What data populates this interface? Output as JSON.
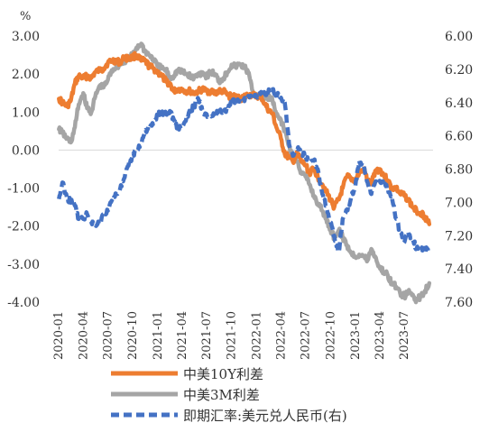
{
  "chart_data": {
    "type": "line",
    "y_unit_label": "%",
    "left_axis": {
      "ticks": [
        "3.00",
        "2.00",
        "1.00",
        "0.00",
        "-1.00",
        "-2.00",
        "-3.00",
        "-4.00"
      ],
      "ylim": [
        -4,
        3
      ]
    },
    "right_axis": {
      "ticks": [
        "6.00",
        "6.20",
        "6.40",
        "6.60",
        "6.80",
        "7.00",
        "7.20",
        "7.40",
        "7.60"
      ],
      "ylim": [
        6.0,
        7.6
      ],
      "reversed": true
    },
    "x_labels": [
      "2020-01",
      "2020-04",
      "2020-07",
      "2020-10",
      "2021-01",
      "2021-04",
      "2021-07",
      "2021-10",
      "2022-01",
      "2022-04",
      "2022-07",
      "2022-10",
      "2023-01",
      "2023-04",
      "2023-07"
    ],
    "legend_position": "bottom-left",
    "series": [
      {
        "name": "中美10Y利差",
        "axis": "left",
        "color": "#ED7D31",
        "style": "solid",
        "points": [
          [
            "2020-01-02",
            1.35
          ],
          [
            "2020-01-15",
            1.25
          ],
          [
            "2020-02-01",
            1.15
          ],
          [
            "2020-02-15",
            1.3
          ],
          [
            "2020-03-01",
            1.75
          ],
          [
            "2020-03-15",
            1.95
          ],
          [
            "2020-04-01",
            1.9
          ],
          [
            "2020-04-15",
            1.95
          ],
          [
            "2020-05-01",
            1.9
          ],
          [
            "2020-05-15",
            2.05
          ],
          [
            "2020-06-01",
            2.1
          ],
          [
            "2020-06-15",
            2.15
          ],
          [
            "2020-07-01",
            2.3
          ],
          [
            "2020-07-15",
            2.35
          ],
          [
            "2020-08-01",
            2.35
          ],
          [
            "2020-08-15",
            2.3
          ],
          [
            "2020-09-01",
            2.45
          ],
          [
            "2020-09-15",
            2.4
          ],
          [
            "2020-10-01",
            2.45
          ],
          [
            "2020-10-15",
            2.5
          ],
          [
            "2020-11-01",
            2.35
          ],
          [
            "2020-11-15",
            2.35
          ],
          [
            "2020-12-01",
            2.2
          ],
          [
            "2020-12-15",
            2.15
          ],
          [
            "2021-01-01",
            2.05
          ],
          [
            "2021-01-15",
            1.95
          ],
          [
            "2021-02-01",
            1.8
          ],
          [
            "2021-02-15",
            1.75
          ],
          [
            "2021-03-01",
            1.55
          ],
          [
            "2021-03-15",
            1.6
          ],
          [
            "2021-04-01",
            1.6
          ],
          [
            "2021-04-15",
            1.55
          ],
          [
            "2021-05-01",
            1.55
          ],
          [
            "2021-05-15",
            1.5
          ],
          [
            "2021-06-01",
            1.55
          ],
          [
            "2021-06-15",
            1.6
          ],
          [
            "2021-07-01",
            1.55
          ],
          [
            "2021-07-15",
            1.55
          ],
          [
            "2021-08-01",
            1.5
          ],
          [
            "2021-08-15",
            1.55
          ],
          [
            "2021-09-01",
            1.55
          ],
          [
            "2021-09-15",
            1.45
          ],
          [
            "2021-10-01",
            1.4
          ],
          [
            "2021-10-15",
            1.4
          ],
          [
            "2021-11-01",
            1.35
          ],
          [
            "2021-11-15",
            1.4
          ],
          [
            "2021-12-01",
            1.45
          ],
          [
            "2021-12-15",
            1.45
          ],
          [
            "2022-01-01",
            1.4
          ],
          [
            "2022-01-15",
            1.45
          ],
          [
            "2022-02-01",
            1.2
          ],
          [
            "2022-02-15",
            1.05
          ],
          [
            "2022-03-01",
            0.95
          ],
          [
            "2022-03-15",
            0.6
          ],
          [
            "2022-04-01",
            0.3
          ],
          [
            "2022-04-15",
            -0.1
          ],
          [
            "2022-05-01",
            -0.2
          ],
          [
            "2022-05-15",
            -0.3
          ],
          [
            "2022-06-01",
            -0.1
          ],
          [
            "2022-06-15",
            -0.3
          ],
          [
            "2022-07-01",
            -0.4
          ],
          [
            "2022-07-15",
            -0.6
          ],
          [
            "2022-08-01",
            -0.5
          ],
          [
            "2022-08-15",
            -0.7
          ],
          [
            "2022-09-01",
            -0.9
          ],
          [
            "2022-09-15",
            -1.1
          ],
          [
            "2022-10-01",
            -1.3
          ],
          [
            "2022-10-15",
            -1.5
          ],
          [
            "2022-11-01",
            -1.3
          ],
          [
            "2022-11-15",
            -1.0
          ],
          [
            "2022-12-01",
            -0.7
          ],
          [
            "2022-12-15",
            -0.75
          ],
          [
            "2023-01-01",
            -0.8
          ],
          [
            "2023-01-15",
            -0.6
          ],
          [
            "2023-02-01",
            -0.5
          ],
          [
            "2023-02-15",
            -0.8
          ],
          [
            "2023-03-01",
            -0.9
          ],
          [
            "2023-03-15",
            -0.55
          ],
          [
            "2023-04-01",
            -0.5
          ],
          [
            "2023-04-15",
            -0.65
          ],
          [
            "2023-05-01",
            -0.8
          ],
          [
            "2023-05-15",
            -1.0
          ],
          [
            "2023-06-01",
            -1.0
          ],
          [
            "2023-06-15",
            -1.15
          ],
          [
            "2023-07-01",
            -1.2
          ],
          [
            "2023-07-15",
            -1.3
          ],
          [
            "2023-08-01",
            -1.5
          ],
          [
            "2023-08-15",
            -1.6
          ],
          [
            "2023-09-01",
            -1.65
          ],
          [
            "2023-09-15",
            -1.75
          ],
          [
            "2023-10-01",
            -1.95
          ]
        ]
      },
      {
        "name": "中美3M利差",
        "axis": "left",
        "color": "#A5A5A5",
        "style": "solid",
        "points": [
          [
            "2020-01-02",
            0.55
          ],
          [
            "2020-01-15",
            0.45
          ],
          [
            "2020-02-01",
            0.3
          ],
          [
            "2020-02-15",
            0.2
          ],
          [
            "2020-03-01",
            0.6
          ],
          [
            "2020-03-15",
            1.2
          ],
          [
            "2020-04-01",
            1.5
          ],
          [
            "2020-04-15",
            1.1
          ],
          [
            "2020-05-01",
            1.0
          ],
          [
            "2020-05-15",
            1.4
          ],
          [
            "2020-06-01",
            1.7
          ],
          [
            "2020-06-15",
            1.65
          ],
          [
            "2020-07-01",
            1.85
          ],
          [
            "2020-07-15",
            2.1
          ],
          [
            "2020-08-01",
            2.2
          ],
          [
            "2020-08-15",
            2.25
          ],
          [
            "2020-09-01",
            2.35
          ],
          [
            "2020-09-15",
            2.4
          ],
          [
            "2020-10-01",
            2.5
          ],
          [
            "2020-10-15",
            2.7
          ],
          [
            "2020-11-01",
            2.8
          ],
          [
            "2020-11-15",
            2.6
          ],
          [
            "2020-12-01",
            2.5
          ],
          [
            "2020-12-15",
            2.4
          ],
          [
            "2021-01-01",
            2.2
          ],
          [
            "2021-01-15",
            2.15
          ],
          [
            "2021-02-01",
            2.1
          ],
          [
            "2021-02-15",
            1.9
          ],
          [
            "2021-03-01",
            1.95
          ],
          [
            "2021-03-15",
            2.1
          ],
          [
            "2021-04-01",
            2.05
          ],
          [
            "2021-04-15",
            2.0
          ],
          [
            "2021-05-01",
            1.95
          ],
          [
            "2021-05-15",
            1.9
          ],
          [
            "2021-06-01",
            2.0
          ],
          [
            "2021-06-15",
            2.05
          ],
          [
            "2021-07-01",
            1.95
          ],
          [
            "2021-07-15",
            2.05
          ],
          [
            "2021-08-01",
            2.0
          ],
          [
            "2021-08-15",
            1.8
          ],
          [
            "2021-09-01",
            1.9
          ],
          [
            "2021-09-15",
            2.05
          ],
          [
            "2021-10-01",
            2.25
          ],
          [
            "2021-10-15",
            2.2
          ],
          [
            "2021-11-01",
            2.25
          ],
          [
            "2021-11-15",
            2.2
          ],
          [
            "2021-12-01",
            2.05
          ],
          [
            "2021-12-15",
            1.6
          ],
          [
            "2022-01-01",
            1.45
          ],
          [
            "2022-01-15",
            1.4
          ],
          [
            "2022-02-01",
            1.35
          ],
          [
            "2022-02-15",
            1.4
          ],
          [
            "2022-03-01",
            1.3
          ],
          [
            "2022-03-15",
            0.9
          ],
          [
            "2022-04-01",
            0.8
          ],
          [
            "2022-04-15",
            0.5
          ],
          [
            "2022-05-01",
            0.1
          ],
          [
            "2022-05-15",
            -0.2
          ],
          [
            "2022-06-01",
            -0.3
          ],
          [
            "2022-06-15",
            -0.6
          ],
          [
            "2022-07-01",
            -0.7
          ],
          [
            "2022-07-15",
            -0.9
          ],
          [
            "2022-08-01",
            -1.2
          ],
          [
            "2022-08-15",
            -1.4
          ],
          [
            "2022-09-01",
            -1.6
          ],
          [
            "2022-09-15",
            -1.8
          ],
          [
            "2022-10-01",
            -2.1
          ],
          [
            "2022-10-15",
            -2.3
          ],
          [
            "2022-11-01",
            -2.1
          ],
          [
            "2022-11-15",
            -2.3
          ],
          [
            "2022-12-01",
            -2.5
          ],
          [
            "2022-12-15",
            -2.7
          ],
          [
            "2023-01-01",
            -2.8
          ],
          [
            "2023-01-15",
            -2.75
          ],
          [
            "2023-02-01",
            -2.8
          ],
          [
            "2023-02-15",
            -2.9
          ],
          [
            "2023-03-01",
            -2.6
          ],
          [
            "2023-03-15",
            -2.8
          ],
          [
            "2023-04-01",
            -3.1
          ],
          [
            "2023-04-15",
            -3.2
          ],
          [
            "2023-05-01",
            -3.3
          ],
          [
            "2023-05-15",
            -3.5
          ],
          [
            "2023-06-01",
            -3.6
          ],
          [
            "2023-06-15",
            -3.75
          ],
          [
            "2023-07-01",
            -3.85
          ],
          [
            "2023-07-15",
            -3.75
          ],
          [
            "2023-08-01",
            -3.8
          ],
          [
            "2023-08-15",
            -3.95
          ],
          [
            "2023-09-01",
            -3.85
          ],
          [
            "2023-09-15",
            -3.7
          ],
          [
            "2023-10-01",
            -3.5
          ]
        ]
      },
      {
        "name": "即期汇率:美元兑人民币(右)",
        "axis": "right",
        "color": "#4472C4",
        "style": "dashed",
        "points": [
          [
            "2020-01-02",
            6.98
          ],
          [
            "2020-01-15",
            6.88
          ],
          [
            "2020-02-01",
            6.98
          ],
          [
            "2020-02-15",
            6.99
          ],
          [
            "2020-03-01",
            7.02
          ],
          [
            "2020-03-15",
            7.1
          ],
          [
            "2020-04-01",
            7.1
          ],
          [
            "2020-04-15",
            7.07
          ],
          [
            "2020-05-01",
            7.12
          ],
          [
            "2020-05-15",
            7.13
          ],
          [
            "2020-06-01",
            7.12
          ],
          [
            "2020-06-15",
            7.07
          ],
          [
            "2020-07-01",
            7.05
          ],
          [
            "2020-07-15",
            6.99
          ],
          [
            "2020-08-01",
            6.95
          ],
          [
            "2020-08-15",
            6.92
          ],
          [
            "2020-09-01",
            6.85
          ],
          [
            "2020-09-15",
            6.78
          ],
          [
            "2020-10-01",
            6.72
          ],
          [
            "2020-10-15",
            6.68
          ],
          [
            "2020-11-01",
            6.65
          ],
          [
            "2020-11-15",
            6.57
          ],
          [
            "2020-12-01",
            6.55
          ],
          [
            "2020-12-15",
            6.53
          ],
          [
            "2021-01-01",
            6.47
          ],
          [
            "2021-01-15",
            6.47
          ],
          [
            "2021-02-01",
            6.46
          ],
          [
            "2021-02-15",
            6.45
          ],
          [
            "2021-03-01",
            6.5
          ],
          [
            "2021-03-15",
            6.55
          ],
          [
            "2021-04-01",
            6.55
          ],
          [
            "2021-04-15",
            6.51
          ],
          [
            "2021-05-01",
            6.45
          ],
          [
            "2021-05-15",
            6.42
          ],
          [
            "2021-06-01",
            6.38
          ],
          [
            "2021-06-15",
            6.45
          ],
          [
            "2021-07-01",
            6.47
          ],
          [
            "2021-07-15",
            6.48
          ],
          [
            "2021-08-01",
            6.48
          ],
          [
            "2021-08-15",
            6.45
          ],
          [
            "2021-09-01",
            6.45
          ],
          [
            "2021-09-15",
            6.44
          ],
          [
            "2021-10-01",
            6.4
          ],
          [
            "2021-10-15",
            6.39
          ],
          [
            "2021-11-01",
            6.38
          ],
          [
            "2021-11-15",
            6.38
          ],
          [
            "2021-12-01",
            6.36
          ],
          [
            "2021-12-15",
            6.37
          ],
          [
            "2022-01-01",
            6.36
          ],
          [
            "2022-01-15",
            6.35
          ],
          [
            "2022-02-01",
            6.35
          ],
          [
            "2022-02-15",
            6.32
          ],
          [
            "2022-03-01",
            6.32
          ],
          [
            "2022-03-15",
            6.35
          ],
          [
            "2022-04-01",
            6.37
          ],
          [
            "2022-04-15",
            6.4
          ],
          [
            "2022-05-01",
            6.65
          ],
          [
            "2022-05-15",
            6.72
          ],
          [
            "2022-06-01",
            6.68
          ],
          [
            "2022-06-15",
            6.7
          ],
          [
            "2022-07-01",
            6.72
          ],
          [
            "2022-07-15",
            6.75
          ],
          [
            "2022-08-01",
            6.75
          ],
          [
            "2022-08-15",
            6.8
          ],
          [
            "2022-09-01",
            6.95
          ],
          [
            "2022-09-15",
            7.02
          ],
          [
            "2022-10-01",
            7.12
          ],
          [
            "2022-10-15",
            7.2
          ],
          [
            "2022-11-01",
            7.3
          ],
          [
            "2022-11-15",
            7.1
          ],
          [
            "2022-12-01",
            7.05
          ],
          [
            "2022-12-15",
            6.98
          ],
          [
            "2023-01-01",
            6.9
          ],
          [
            "2023-01-15",
            6.75
          ],
          [
            "2023-02-01",
            6.78
          ],
          [
            "2023-02-15",
            6.88
          ],
          [
            "2023-03-01",
            6.95
          ],
          [
            "2023-03-15",
            6.88
          ],
          [
            "2023-04-01",
            6.87
          ],
          [
            "2023-04-15",
            6.88
          ],
          [
            "2023-05-01",
            6.92
          ],
          [
            "2023-05-15",
            6.96
          ],
          [
            "2023-06-01",
            7.1
          ],
          [
            "2023-06-15",
            7.18
          ],
          [
            "2023-07-01",
            7.24
          ],
          [
            "2023-07-15",
            7.18
          ],
          [
            "2023-08-01",
            7.22
          ],
          [
            "2023-08-15",
            7.28
          ],
          [
            "2023-09-01",
            7.28
          ],
          [
            "2023-09-15",
            7.28
          ],
          [
            "2023-10-01",
            7.3
          ]
        ]
      }
    ]
  }
}
